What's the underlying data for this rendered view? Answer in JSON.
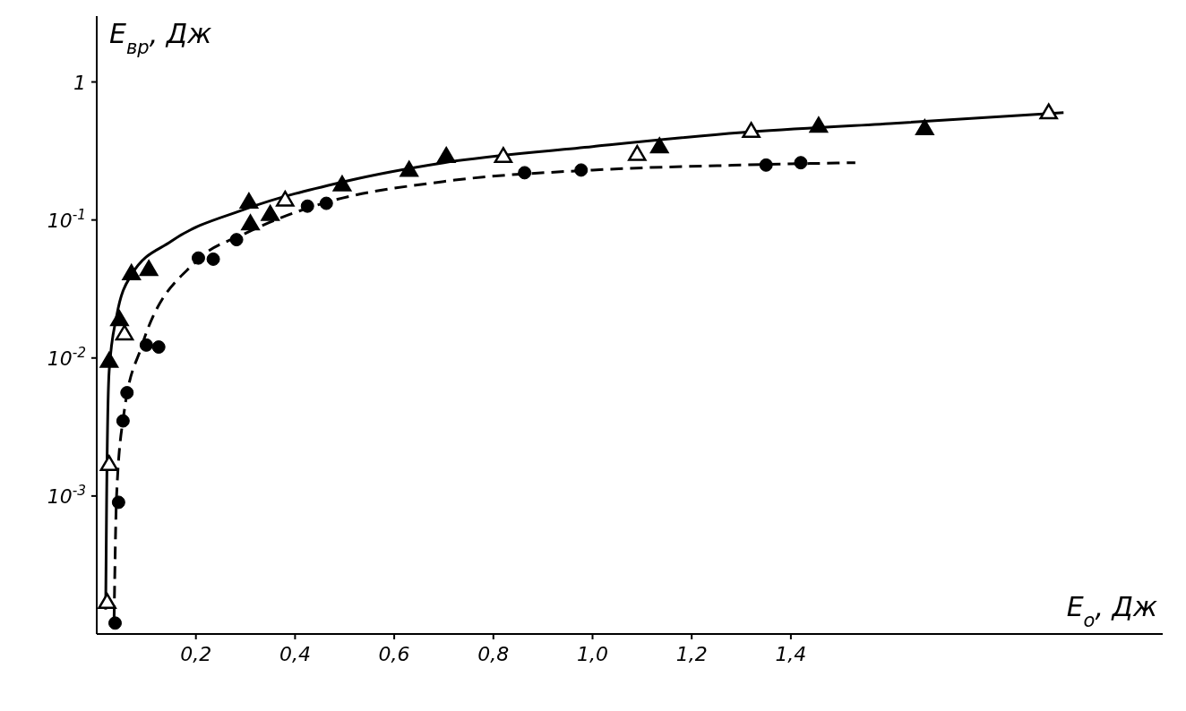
{
  "chart_data": {
    "type": "scatter",
    "xlabel": "E$_{o}$, Дж",
    "ylabel": "E$_{вр}$, Дж",
    "xlim": [
      0,
      2.15
    ],
    "ylim": [
      0.0001,
      3
    ],
    "log": "y",
    "grid": false,
    "xticks": [
      {
        "value": 0.2,
        "label": "0,2"
      },
      {
        "value": 0.4,
        "label": "0,4"
      },
      {
        "value": 0.6,
        "label": "0,6"
      },
      {
        "value": 0.8,
        "label": "0,8"
      },
      {
        "value": 1.0,
        "label": "1,0"
      },
      {
        "value": 1.2,
        "label": "1,2"
      },
      {
        "value": 1.4,
        "label": "1,4"
      }
    ],
    "yticks": [
      {
        "value": 0.001,
        "label": "10$^{-3}$"
      },
      {
        "value": 0.01,
        "label": "10$^{-2}$"
      },
      {
        "value": 0.1,
        "label": "10$^{-1}$"
      },
      1
    ],
    "series": [
      {
        "type": "line",
        "color": "#000000",
        "marker": "none",
        "line_style": "solid",
        "x": [
          0.018,
          0.02,
          0.025,
          0.04,
          0.07,
          0.15,
          0.3,
          0.5,
          0.7,
          1.0,
          1.3,
          1.6,
          1.95
        ],
        "values": [
          0.00015,
          0.001,
          0.008,
          0.02,
          0.04,
          0.07,
          0.12,
          0.19,
          0.26,
          0.34,
          0.43,
          0.5,
          0.6
        ]
      },
      {
        "type": "line",
        "color": "#000000",
        "marker": "none",
        "line_style": "dashed",
        "x": [
          0.035,
          0.04,
          0.055,
          0.09,
          0.2,
          0.3,
          0.45,
          0.7,
          1.0,
          1.3,
          1.53
        ],
        "values": [
          0.00013,
          0.001,
          0.004,
          0.012,
          0.05,
          0.08,
          0.13,
          0.19,
          0.23,
          0.25,
          0.26
        ]
      },
      {
        "color": "#000000",
        "marker": "triangle",
        "x": [
          0.025,
          0.046,
          0.07,
          0.105,
          0.307,
          0.31,
          0.35,
          0.495,
          0.63,
          0.705,
          1.135,
          1.456,
          1.67
        ],
        "values": [
          0.0095,
          0.019,
          0.041,
          0.044,
          0.135,
          0.094,
          0.11,
          0.18,
          0.23,
          0.29,
          0.34,
          0.48,
          0.46
        ]
      },
      {
        "color": "#ffffff",
        "marker": "triangle",
        "x": [
          0.021,
          0.025,
          0.056,
          0.38,
          0.82,
          1.09,
          1.32,
          1.92
        ],
        "values": [
          0.00017,
          0.0017,
          0.015,
          0.14,
          0.29,
          0.3,
          0.44,
          0.6
        ]
      },
      {
        "color": "#000000",
        "marker": "circle",
        "x": [
          0.037,
          0.044,
          0.053,
          0.061,
          0.1,
          0.125,
          0.205,
          0.235,
          0.282,
          0.425,
          0.463,
          0.863,
          0.977,
          1.35,
          1.42
        ],
        "values": [
          0.00012,
          0.0009,
          0.0035,
          0.0056,
          0.0124,
          0.012,
          0.053,
          0.052,
          0.072,
          0.126,
          0.132,
          0.22,
          0.23,
          0.25,
          0.26
        ]
      }
    ]
  }
}
